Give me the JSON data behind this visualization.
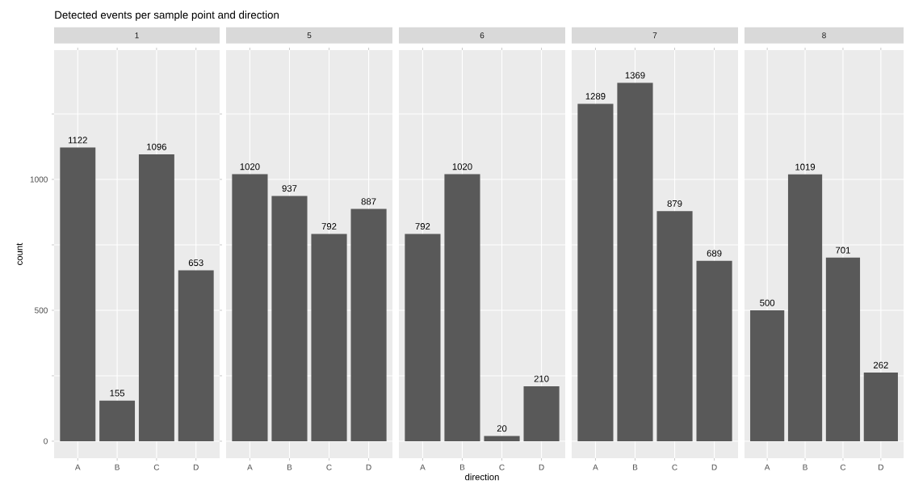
{
  "chart_data": [
    {
      "type": "bar",
      "title": "Detected events per sample point and direction",
      "subtitle": "1",
      "ylabel": "count",
      "categories": [
        "A",
        "B",
        "C",
        "D"
      ],
      "values": [
        1122,
        155,
        1096,
        653
      ],
      "color": "#595959",
      "ylim": [
        -65,
        1494
      ],
      "yticks": [
        0,
        {
          "value": 250,
          "label": null
        },
        500,
        {
          "value": 750,
          "label": null
        },
        1000,
        {
          "value": 1250,
          "label": null
        }
      ],
      "grid": true,
      "data_labels": true
    },
    {
      "type": "bar",
      "subtitle": "5",
      "categories": [
        "A",
        "B",
        "C",
        "D"
      ],
      "values": [
        1020,
        937,
        792,
        887
      ],
      "color": "#595959",
      "ylim": [
        -65,
        1494
      ],
      "yticks": [
        0,
        {
          "value": 250,
          "label": null
        },
        500,
        {
          "value": 750,
          "label": null
        },
        1000,
        {
          "value": 1250,
          "label": null
        }
      ],
      "grid": true,
      "data_labels": true,
      "tick_labels": "x"
    },
    {
      "type": "bar",
      "subtitle": "6",
      "xlabel": "direction",
      "categories": [
        "A",
        "B",
        "C",
        "D"
      ],
      "values": [
        792,
        1020,
        20,
        210
      ],
      "color": "#595959",
      "ylim": [
        -65,
        1494
      ],
      "yticks": [
        0,
        {
          "value": 250,
          "label": null
        },
        500,
        {
          "value": 750,
          "label": null
        },
        1000,
        {
          "value": 1250,
          "label": null
        }
      ],
      "grid": true,
      "data_labels": true,
      "tick_labels": "x"
    },
    {
      "type": "bar",
      "subtitle": "7",
      "categories": [
        "A",
        "B",
        "C",
        "D"
      ],
      "values": [
        1289,
        1369,
        879,
        689
      ],
      "color": "#595959",
      "ylim": [
        -65,
        1494
      ],
      "yticks": [
        0,
        {
          "value": 250,
          "label": null
        },
        500,
        {
          "value": 750,
          "label": null
        },
        1000,
        {
          "value": 1250,
          "label": null
        }
      ],
      "grid": true,
      "data_labels": true,
      "tick_labels": "x"
    },
    {
      "type": "bar",
      "subtitle": "8",
      "categories": [
        "A",
        "B",
        "C",
        "D"
      ],
      "values": [
        500,
        1019,
        701,
        262
      ],
      "color": "#595959",
      "ylim": [
        -65,
        1494
      ],
      "yticks": [
        0,
        {
          "value": 250,
          "label": null
        },
        500,
        {
          "value": 750,
          "label": null
        },
        1000,
        {
          "value": 1250,
          "label": null
        }
      ],
      "grid": true,
      "data_labels": true,
      "tick_labels": "x"
    }
  ]
}
